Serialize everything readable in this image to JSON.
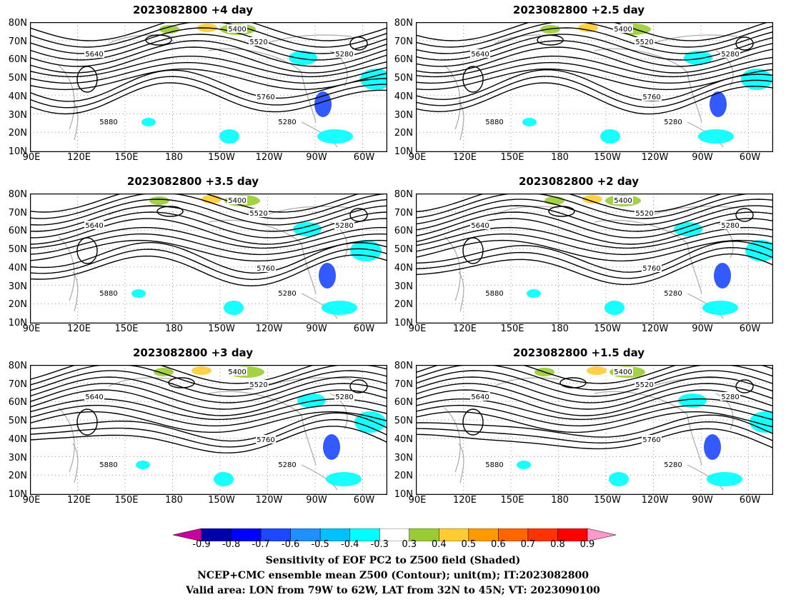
{
  "panels": [
    {
      "title": "2023082800  +4  day"
    },
    {
      "title": "2023082800  +2.5  day"
    },
    {
      "title": "2023082800  +3.5  day"
    },
    {
      "title": "2023082800  +2  day"
    },
    {
      "title": "2023082800  +3  day"
    },
    {
      "title": "2023082800  +1.5  day"
    }
  ],
  "lat_labels": [
    "80N",
    "70N",
    "60N",
    "50N",
    "40N",
    "30N",
    "20N",
    "10N"
  ],
  "lon_labels": [
    "90E",
    "120E",
    "150E",
    "180",
    "150W",
    "120W",
    "90W",
    "60W"
  ],
  "contour_labels": [
    "5280",
    "5400",
    "5520",
    "5640",
    "5760",
    "5880"
  ],
  "colorbar": {
    "labels": [
      "-0.9",
      "-0.8",
      "-0.7",
      "-0.6",
      "-0.5",
      "-0.4",
      "-0.3",
      "0.3",
      "0.4",
      "0.5",
      "0.6",
      "0.7",
      "0.8",
      "0.9"
    ],
    "colors": [
      "#c8009c",
      "#0000a8",
      "#0000ff",
      "#1c48ff",
      "#1e90ff",
      "#00c0ff",
      "#00ffff",
      "#ffffff",
      "#99cc33",
      "#ffcc33",
      "#ff9900",
      "#ff6600",
      "#ff3300",
      "#ff0000",
      "#ff99cc"
    ]
  },
  "footer": {
    "line1": "Sensitivity of EOF PC2 to Z500 field (Shaded)",
    "line2": "NCEP+CMC ensemble mean Z500 (Contour); unit(m); IT:2023082800",
    "line3": "Valid area: LON from 79W to 62W, LAT from 32N to 45N; VT: 2023090100"
  }
}
